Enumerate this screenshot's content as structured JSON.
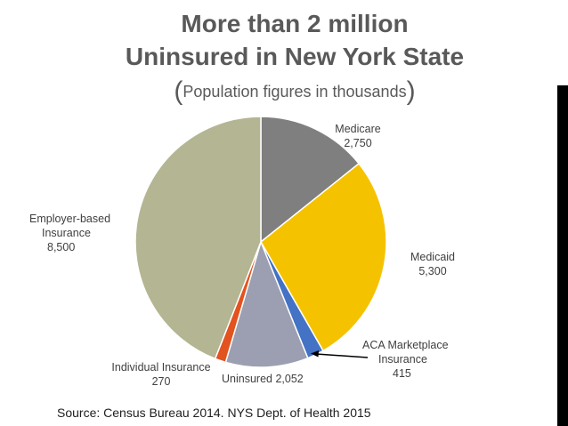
{
  "title_line1": "More than 2 million",
  "title_line2": "Uninsured in New York State",
  "subtitle": {
    "open": "(",
    "text": "Population figures in thousands",
    "close": ")"
  },
  "source": "Source: Census Bureau 2014. NYS Dept. of Health 2015",
  "chart_data": {
    "type": "pie",
    "title": "More than 2 million Uninsured in New York State",
    "subtitle": "(Population figures in thousands)",
    "start_angle_deg": 0,
    "direction": "clockwise",
    "slices": [
      {
        "label": "Medicare",
        "value": 2750,
        "value_text": "2,750",
        "color": "#7f7f7f"
      },
      {
        "label": "Medicaid",
        "value": 5300,
        "value_text": "5,300",
        "color": "#f5c200"
      },
      {
        "label": "ACA Marketplace Insurance",
        "label_line1": "ACA Marketplace",
        "label_line2": "Insurance",
        "value": 415,
        "value_text": "415",
        "color": "#4472c4"
      },
      {
        "label": "Uninsured",
        "value": 2052,
        "value_text": "2,052",
        "color": "#9b9fb1"
      },
      {
        "label": "Individual Insurance",
        "value": 270,
        "value_text": "270",
        "color": "#e2531f"
      },
      {
        "label": "Employer-based Insurance",
        "label_line1": "Employer-based",
        "label_line2": "Insurance",
        "value": 8500,
        "value_text": "8,500",
        "color": "#b4b592"
      }
    ]
  }
}
